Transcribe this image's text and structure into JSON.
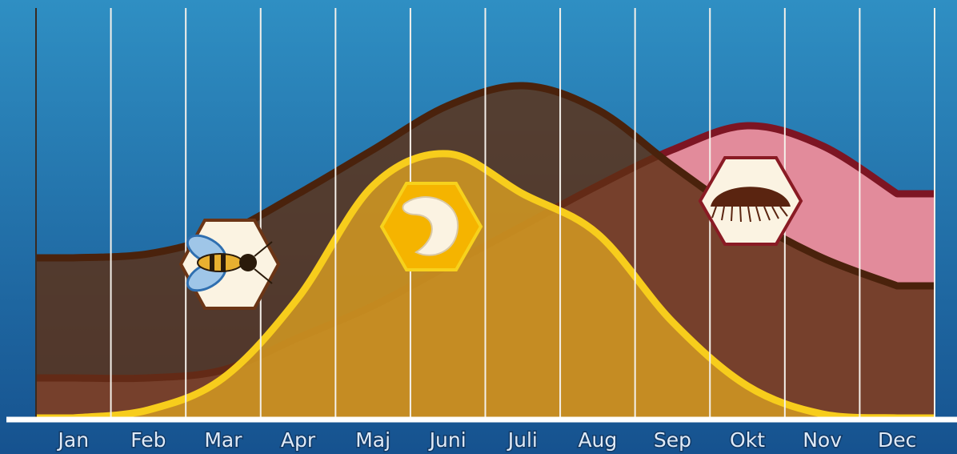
{
  "chart_data": {
    "type": "area",
    "categories": [
      "Jan",
      "Feb",
      "Mar",
      "Apr",
      "Maj",
      "Juni",
      "Juli",
      "Aug",
      "Sep",
      "Okt",
      "Nov",
      "Dec"
    ],
    "series": [
      {
        "color": "#e28b9b",
        "line_color": "#7d1523",
        "values": [
          10,
          10,
          12,
          20,
          28,
          38,
          48,
          58,
          67,
          73,
          68,
          56
        ]
      },
      {
        "color": "#5e3014",
        "line_color": "#4a220c",
        "values": [
          40,
          41,
          46,
          56,
          67,
          78,
          83,
          77,
          63,
          50,
          40,
          33
        ]
      },
      {
        "color": "#d49a22",
        "line_color": "#f7cd1c",
        "values": [
          0,
          2,
          10,
          30,
          58,
          66,
          56,
          46,
          24,
          8,
          1,
          0
        ]
      }
    ],
    "ylim": [
      0,
      100
    ]
  }
}
